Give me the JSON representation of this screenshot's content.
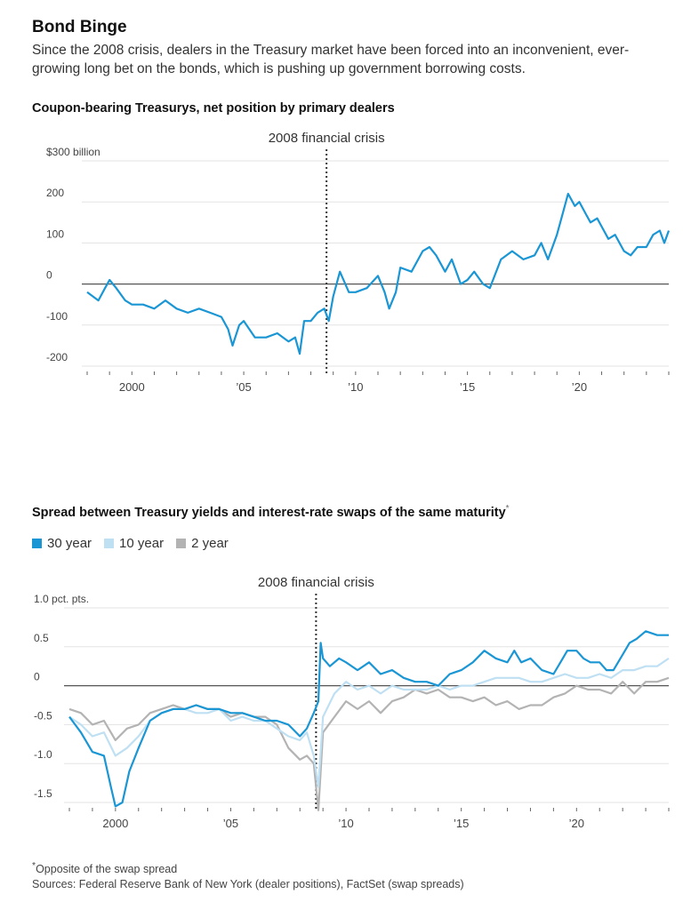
{
  "headline": "Bond Binge",
  "dek": "Since the 2008 crisis, dealers in the Treasury market have been forced into an inconvenient, ever-growing long bet on the bonds, which is pushing up government borrowing costs.",
  "colors": {
    "blue": "#1a96d4",
    "light_blue": "#bfe0f3",
    "gray": "#b3b3b3",
    "grid": "#e3e3e3",
    "axis": "#555555"
  },
  "chart_data": [
    {
      "type": "line",
      "title": "Coupon-bearing Treasurys, net position by primary dealers",
      "unit_label": "$300 billion",
      "annotation": "2008 financial crisis",
      "annotation_x": 2008.7,
      "xlim": [
        1998,
        2024
      ],
      "ylim": [
        -200,
        300
      ],
      "yticks": [
        300,
        200,
        100,
        0,
        -100,
        -200
      ],
      "ytick_labels": [
        "$300 billion",
        "200",
        "100",
        "0",
        "-100",
        "-200"
      ],
      "xtick_labels": [
        {
          "x": 2000,
          "label": "2000"
        },
        {
          "x": 2005,
          "label": "’05"
        },
        {
          "x": 2010,
          "label": "’10"
        },
        {
          "x": 2015,
          "label": "’15"
        },
        {
          "x": 2020,
          "label": "’20"
        }
      ],
      "series": [
        {
          "color": "#1a96d4",
          "x": [
            1998.0,
            1998.5,
            1998.8,
            1999.0,
            1999.3,
            1999.7,
            2000.0,
            2000.5,
            2001.0,
            2001.5,
            2002.0,
            2002.5,
            2003.0,
            2003.5,
            2004.0,
            2004.3,
            2004.5,
            2004.8,
            2005.0,
            2005.5,
            2006.0,
            2006.5,
            2007.0,
            2007.3,
            2007.5,
            2007.7,
            2008.0,
            2008.3,
            2008.6,
            2008.8,
            2009.0,
            2009.3,
            2009.7,
            2010.0,
            2010.5,
            2011.0,
            2011.3,
            2011.5,
            2011.8,
            2012.0,
            2012.5,
            2013.0,
            2013.3,
            2013.6,
            2014.0,
            2014.3,
            2014.7,
            2015.0,
            2015.3,
            2015.7,
            2016.0,
            2016.5,
            2017.0,
            2017.5,
            2018.0,
            2018.3,
            2018.6,
            2019.0,
            2019.3,
            2019.5,
            2019.8,
            2020.0,
            2020.3,
            2020.5,
            2020.8,
            2021.0,
            2021.3,
            2021.6,
            2022.0,
            2022.3,
            2022.6,
            2023.0,
            2023.3,
            2023.6,
            2023.8,
            2024.0
          ],
          "y": [
            -20,
            -40,
            -10,
            10,
            -10,
            -40,
            -50,
            -50,
            -60,
            -40,
            -60,
            -70,
            -60,
            -70,
            -80,
            -110,
            -150,
            -100,
            -90,
            -130,
            -130,
            -120,
            -140,
            -130,
            -170,
            -90,
            -90,
            -70,
            -60,
            -90,
            -30,
            30,
            -20,
            -20,
            -10,
            20,
            -20,
            -60,
            -20,
            40,
            30,
            80,
            90,
            70,
            30,
            60,
            0,
            10,
            30,
            0,
            -10,
            60,
            80,
            60,
            70,
            100,
            60,
            120,
            180,
            220,
            190,
            200,
            170,
            150,
            160,
            140,
            110,
            120,
            80,
            70,
            90,
            90,
            120,
            130,
            100,
            130
          ]
        }
      ]
    },
    {
      "type": "line",
      "title": "Spread between Treasury yields and interest-rate swaps of the same maturity",
      "title_marker": "*",
      "unit_label": "1.0 pct. pts.",
      "annotation": "2008 financial crisis",
      "annotation_x": 2008.7,
      "xlim": [
        1998,
        2024
      ],
      "ylim": [
        -1.5,
        1.0
      ],
      "yticks": [
        1.0,
        0.5,
        0,
        -0.5,
        -1.0,
        -1.5
      ],
      "ytick_labels": [
        "1.0 pct. pts.",
        "0.5",
        "0",
        "-0.5",
        "-1.0",
        "-1.5"
      ],
      "xtick_labels": [
        {
          "x": 2000,
          "label": "2000"
        },
        {
          "x": 2005,
          "label": "’05"
        },
        {
          "x": 2010,
          "label": "’10"
        },
        {
          "x": 2015,
          "label": "’15"
        },
        {
          "x": 2020,
          "label": "’20"
        }
      ],
      "legend": [
        {
          "label": "30 year",
          "color": "#1a96d4"
        },
        {
          "label": "10 year",
          "color": "#bfe0f3"
        },
        {
          "label": "2 year",
          "color": "#b3b3b3"
        }
      ],
      "series": [
        {
          "name": "2 year",
          "color": "#b3b3b3",
          "x": [
            1998.0,
            1998.5,
            1999.0,
            1999.5,
            2000.0,
            2000.5,
            2001.0,
            2001.5,
            2002.0,
            2002.5,
            2003.0,
            2003.5,
            2004.0,
            2004.5,
            2005.0,
            2005.5,
            2006.0,
            2006.5,
            2007.0,
            2007.5,
            2008.0,
            2008.3,
            2008.6,
            2008.8,
            2009.0,
            2009.5,
            2010.0,
            2010.5,
            2011.0,
            2011.5,
            2012.0,
            2012.5,
            2013.0,
            2013.5,
            2014.0,
            2014.5,
            2015.0,
            2015.5,
            2016.0,
            2016.5,
            2017.0,
            2017.5,
            2018.0,
            2018.5,
            2019.0,
            2019.5,
            2020.0,
            2020.5,
            2021.0,
            2021.5,
            2022.0,
            2022.5,
            2023.0,
            2023.5,
            2024.0
          ],
          "y": [
            -0.3,
            -0.35,
            -0.5,
            -0.45,
            -0.7,
            -0.55,
            -0.5,
            -0.35,
            -0.3,
            -0.25,
            -0.3,
            -0.25,
            -0.3,
            -0.3,
            -0.4,
            -0.35,
            -0.4,
            -0.4,
            -0.5,
            -0.8,
            -0.95,
            -0.9,
            -1.0,
            -1.6,
            -0.6,
            -0.4,
            -0.2,
            -0.3,
            -0.2,
            -0.35,
            -0.2,
            -0.15,
            -0.05,
            -0.1,
            -0.05,
            -0.15,
            -0.15,
            -0.2,
            -0.15,
            -0.25,
            -0.2,
            -0.3,
            -0.25,
            -0.25,
            -0.15,
            -0.1,
            0.0,
            -0.05,
            -0.05,
            -0.1,
            0.05,
            -0.1,
            0.05,
            0.05,
            0.1
          ]
        },
        {
          "name": "10 year",
          "color": "#bfe0f3",
          "x": [
            1998.0,
            1998.5,
            1999.0,
            1999.5,
            2000.0,
            2000.5,
            2001.0,
            2001.5,
            2002.0,
            2002.5,
            2003.0,
            2003.5,
            2004.0,
            2004.5,
            2005.0,
            2005.5,
            2006.0,
            2006.5,
            2007.0,
            2007.5,
            2008.0,
            2008.3,
            2008.6,
            2008.8,
            2009.0,
            2009.5,
            2010.0,
            2010.5,
            2011.0,
            2011.5,
            2012.0,
            2012.5,
            2013.0,
            2013.5,
            2014.0,
            2014.5,
            2015.0,
            2015.5,
            2016.0,
            2016.5,
            2017.0,
            2017.5,
            2018.0,
            2018.5,
            2019.0,
            2019.5,
            2020.0,
            2020.5,
            2021.0,
            2021.5,
            2022.0,
            2022.5,
            2023.0,
            2023.5,
            2024.0
          ],
          "y": [
            -0.4,
            -0.5,
            -0.65,
            -0.6,
            -0.9,
            -0.8,
            -0.65,
            -0.45,
            -0.35,
            -0.3,
            -0.3,
            -0.35,
            -0.35,
            -0.3,
            -0.45,
            -0.4,
            -0.45,
            -0.45,
            -0.55,
            -0.65,
            -0.7,
            -0.6,
            -0.9,
            -1.3,
            -0.4,
            -0.1,
            0.05,
            -0.05,
            0.0,
            -0.1,
            0.0,
            -0.05,
            -0.05,
            -0.05,
            0.0,
            -0.05,
            0.0,
            0.0,
            0.05,
            0.1,
            0.1,
            0.1,
            0.05,
            0.05,
            0.1,
            0.15,
            0.1,
            0.1,
            0.15,
            0.1,
            0.2,
            0.2,
            0.25,
            0.25,
            0.35
          ]
        },
        {
          "name": "30 year",
          "color": "#1a96d4",
          "x": [
            1998.0,
            1998.5,
            1999.0,
            1999.5,
            1999.8,
            2000.0,
            2000.3,
            2000.6,
            2001.0,
            2001.5,
            2002.0,
            2002.5,
            2003.0,
            2003.5,
            2004.0,
            2004.5,
            2005.0,
            2005.5,
            2006.0,
            2006.5,
            2007.0,
            2007.5,
            2008.0,
            2008.3,
            2008.6,
            2008.8,
            2008.9,
            2009.0,
            2009.3,
            2009.7,
            2010.0,
            2010.5,
            2011.0,
            2011.5,
            2012.0,
            2012.5,
            2013.0,
            2013.5,
            2014.0,
            2014.5,
            2015.0,
            2015.5,
            2016.0,
            2016.5,
            2017.0,
            2017.3,
            2017.6,
            2018.0,
            2018.5,
            2019.0,
            2019.3,
            2019.6,
            2020.0,
            2020.3,
            2020.6,
            2021.0,
            2021.3,
            2021.6,
            2022.0,
            2022.3,
            2022.6,
            2023.0,
            2023.5,
            2024.0
          ],
          "y": [
            -0.4,
            -0.6,
            -0.85,
            -0.9,
            -1.3,
            -1.55,
            -1.5,
            -1.1,
            -0.8,
            -0.45,
            -0.35,
            -0.3,
            -0.3,
            -0.25,
            -0.3,
            -0.3,
            -0.35,
            -0.35,
            -0.4,
            -0.45,
            -0.45,
            -0.5,
            -0.65,
            -0.55,
            -0.35,
            -0.2,
            0.55,
            0.35,
            0.25,
            0.35,
            0.3,
            0.2,
            0.3,
            0.15,
            0.2,
            0.1,
            0.05,
            0.05,
            0.0,
            0.15,
            0.2,
            0.3,
            0.45,
            0.35,
            0.3,
            0.45,
            0.3,
            0.35,
            0.2,
            0.15,
            0.3,
            0.45,
            0.45,
            0.35,
            0.3,
            0.3,
            0.2,
            0.2,
            0.4,
            0.55,
            0.6,
            0.7,
            0.65,
            0.65
          ]
        }
      ]
    }
  ],
  "footnote_marker": "*",
  "footnote": "Opposite of the swap spread",
  "sources": "Sources: Federal Reserve Bank of New York (dealer positions), FactSet (swap spreads)"
}
